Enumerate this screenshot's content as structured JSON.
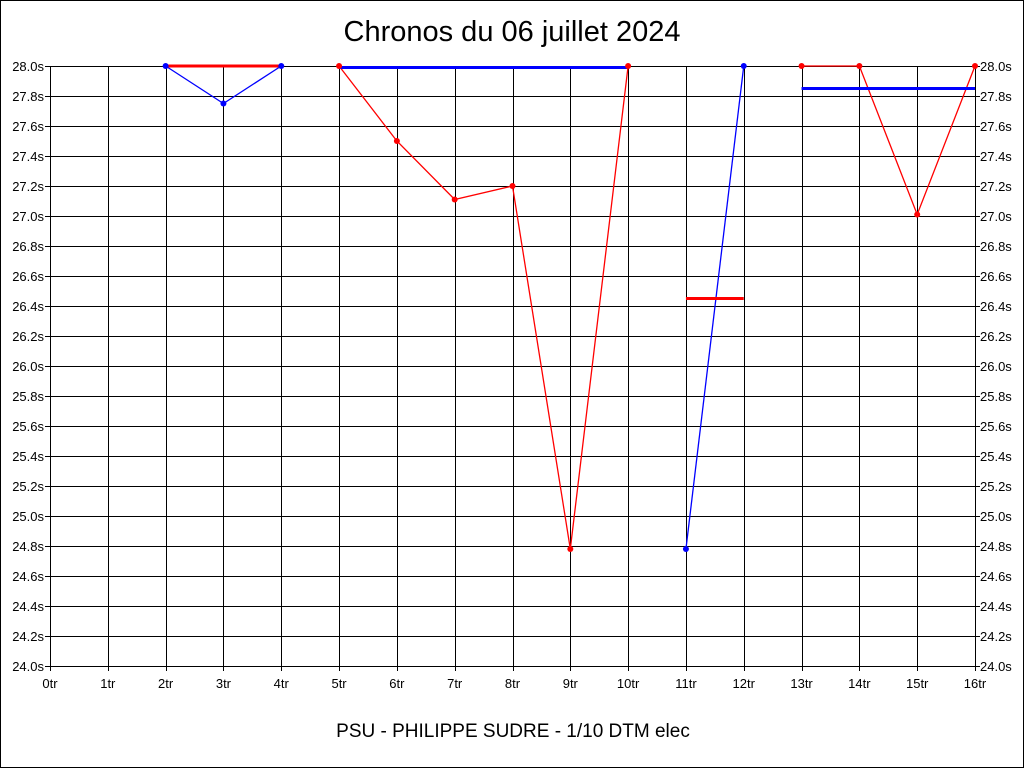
{
  "chart_data": {
    "type": "line",
    "title": "Chronos du 06 juillet 2024",
    "subtitle": "PSU - PHILIPPE SUDRE - 1/10 DTM elec",
    "x_categories": [
      "0tr",
      "1tr",
      "2tr",
      "3tr",
      "4tr",
      "5tr",
      "6tr",
      "7tr",
      "8tr",
      "9tr",
      "10tr",
      "11tr",
      "12tr",
      "13tr",
      "14tr",
      "15tr",
      "16tr"
    ],
    "y_ticks": [
      "24.0s",
      "24.2s",
      "24.4s",
      "24.6s",
      "24.8s",
      "25.0s",
      "25.2s",
      "25.4s",
      "25.6s",
      "25.8s",
      "26.0s",
      "26.2s",
      "26.4s",
      "26.6s",
      "26.8s",
      "27.0s",
      "27.2s",
      "27.4s",
      "27.6s",
      "27.8s",
      "28.0s"
    ],
    "ylim": [
      24.0,
      28.0
    ],
    "xlim": [
      0,
      16
    ],
    "grid": true,
    "series": [
      {
        "color": "#0000ff",
        "x": [
          2,
          3,
          4
        ],
        "y": [
          28.0,
          27.75,
          28.0
        ]
      },
      {
        "color": "#ff0000",
        "x": [
          5,
          6,
          7,
          8,
          9,
          10
        ],
        "y": [
          28.0,
          27.5,
          27.11,
          27.2,
          24.78,
          28.0
        ]
      },
      {
        "color": "#0000ff",
        "x": [
          11,
          12
        ],
        "y": [
          24.78,
          28.0
        ]
      },
      {
        "color": "#ff0000",
        "x": [
          13,
          14,
          15,
          16
        ],
        "y": [
          28.0,
          28.0,
          27.01,
          28.0
        ]
      }
    ],
    "averages": [
      {
        "color": "#ff0000",
        "x_from": 2,
        "x_to": 4,
        "y": 28.0
      },
      {
        "color": "#0000ff",
        "x_from": 5,
        "x_to": 10,
        "y": 27.99
      },
      {
        "color": "#ff0000",
        "x_from": 11,
        "x_to": 12,
        "y": 26.45
      },
      {
        "color": "#0000ff",
        "x_from": 13,
        "x_to": 16,
        "y": 27.85
      }
    ]
  }
}
